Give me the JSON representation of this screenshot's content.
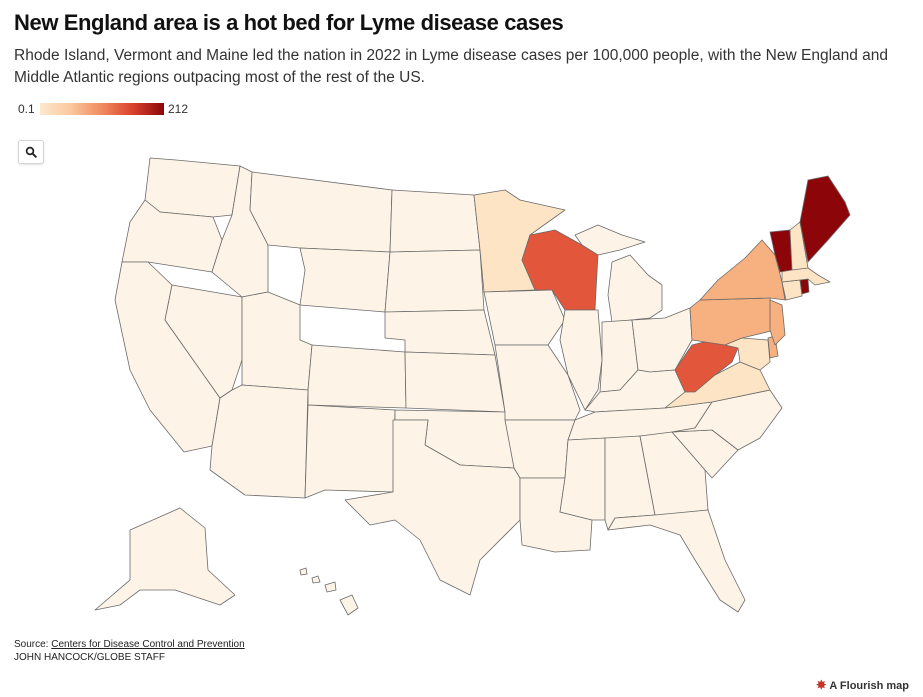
{
  "header": {
    "title": "New England area is a hot bed for Lyme disease cases",
    "subtitle": "Rhode Island, Vermont and Maine led the nation in 2022 in Lyme disease cases per 100,000 people, with the New England and Middle Atlantic regions outpacing most of the rest of the US."
  },
  "legend": {
    "min_label": "0.1",
    "max_label": "212",
    "color_low": "#fde9cf",
    "color_high": "#8c0509"
  },
  "controls": {
    "search_icon": "magnifier-icon"
  },
  "map": {
    "type": "choropleth",
    "colors": {
      "base": "#fdf3e6",
      "light": "#fde4c4",
      "medium": "#f7b07f",
      "strong": "#e2563c",
      "dark": "#8c0509"
    }
  },
  "footer": {
    "source_prefix": "Source: ",
    "source_link": "Centers for Disease Control and Prevention",
    "credit": "JOHN HANCOCK/GLOBE STAFF",
    "brand": "A Flourish map"
  }
}
